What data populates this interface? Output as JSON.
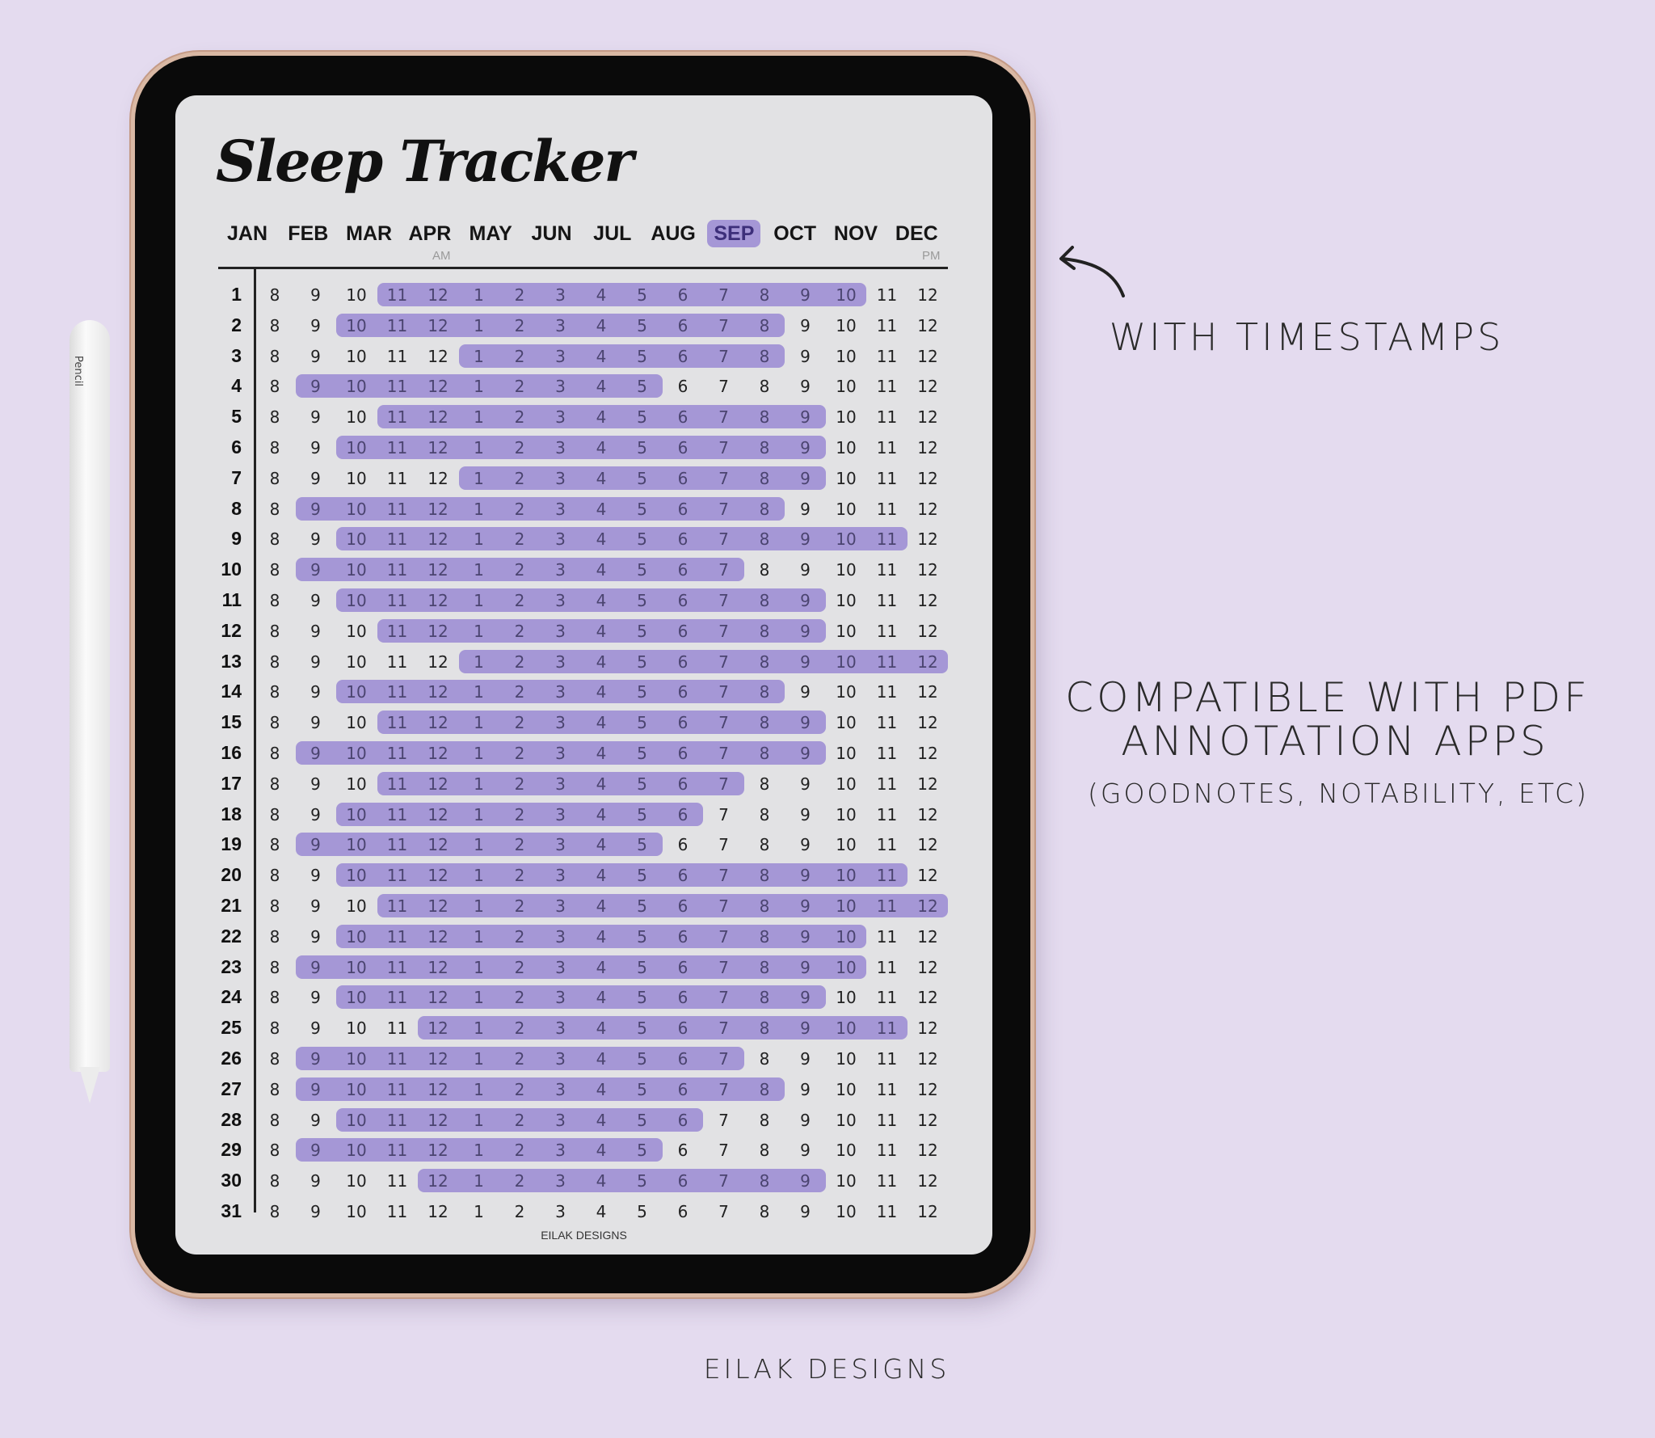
{
  "title": "Sleep Tracker",
  "months": [
    "JAN",
    "FEB",
    "MAR",
    "APR",
    "MAY",
    "JUN",
    "JUL",
    "AUG",
    "SEP",
    "OCT",
    "NOV",
    "DEC"
  ],
  "active_month": "SEP",
  "am_label": "AM",
  "pm_label": "PM",
  "hours": [
    "8",
    "9",
    "10",
    "11",
    "12",
    "1",
    "2",
    "3",
    "4",
    "5",
    "6",
    "7",
    "8",
    "9",
    "10",
    "11",
    "12"
  ],
  "bar_color": "#a597d6",
  "sleep": [
    {
      "day": 1,
      "from_col": 3,
      "to_col": 14
    },
    {
      "day": 2,
      "from_col": 2,
      "to_col": 12
    },
    {
      "day": 3,
      "from_col": 5,
      "to_col": 12
    },
    {
      "day": 4,
      "from_col": 1,
      "to_col": 9
    },
    {
      "day": 5,
      "from_col": 3,
      "to_col": 13
    },
    {
      "day": 6,
      "from_col": 2,
      "to_col": 13
    },
    {
      "day": 7,
      "from_col": 5,
      "to_col": 13
    },
    {
      "day": 8,
      "from_col": 1,
      "to_col": 12
    },
    {
      "day": 9,
      "from_col": 2,
      "to_col": 15
    },
    {
      "day": 10,
      "from_col": 1,
      "to_col": 11
    },
    {
      "day": 11,
      "from_col": 2,
      "to_col": 13
    },
    {
      "day": 12,
      "from_col": 3,
      "to_col": 13
    },
    {
      "day": 13,
      "from_col": 5,
      "to_col": 16
    },
    {
      "day": 14,
      "from_col": 2,
      "to_col": 12
    },
    {
      "day": 15,
      "from_col": 3,
      "to_col": 13
    },
    {
      "day": 16,
      "from_col": 1,
      "to_col": 13
    },
    {
      "day": 17,
      "from_col": 3,
      "to_col": 11
    },
    {
      "day": 18,
      "from_col": 2,
      "to_col": 10
    },
    {
      "day": 19,
      "from_col": 1,
      "to_col": 9
    },
    {
      "day": 20,
      "from_col": 2,
      "to_col": 15
    },
    {
      "day": 21,
      "from_col": 3,
      "to_col": 16
    },
    {
      "day": 22,
      "from_col": 2,
      "to_col": 14
    },
    {
      "day": 23,
      "from_col": 1,
      "to_col": 14
    },
    {
      "day": 24,
      "from_col": 2,
      "to_col": 13
    },
    {
      "day": 25,
      "from_col": 4,
      "to_col": 15
    },
    {
      "day": 26,
      "from_col": 1,
      "to_col": 11
    },
    {
      "day": 27,
      "from_col": 1,
      "to_col": 12
    },
    {
      "day": 28,
      "from_col": 2,
      "to_col": 10
    },
    {
      "day": 29,
      "from_col": 1,
      "to_col": 9
    },
    {
      "day": 30,
      "from_col": 4,
      "to_col": 13
    },
    {
      "day": 31,
      "from_col": null,
      "to_col": null
    }
  ],
  "screen_footer": "EILAK DESIGNS",
  "pencil_label": "Pencil",
  "promo": {
    "timestamps": "WITH TIMESTAMPS",
    "compatible_line1": "COMPATIBLE WITH PDF",
    "compatible_line2": "ANNOTATION APPS",
    "apps": "(GOODNOTES, NOTABILITY, ETC)",
    "brand": "EILAK DESIGNS"
  }
}
